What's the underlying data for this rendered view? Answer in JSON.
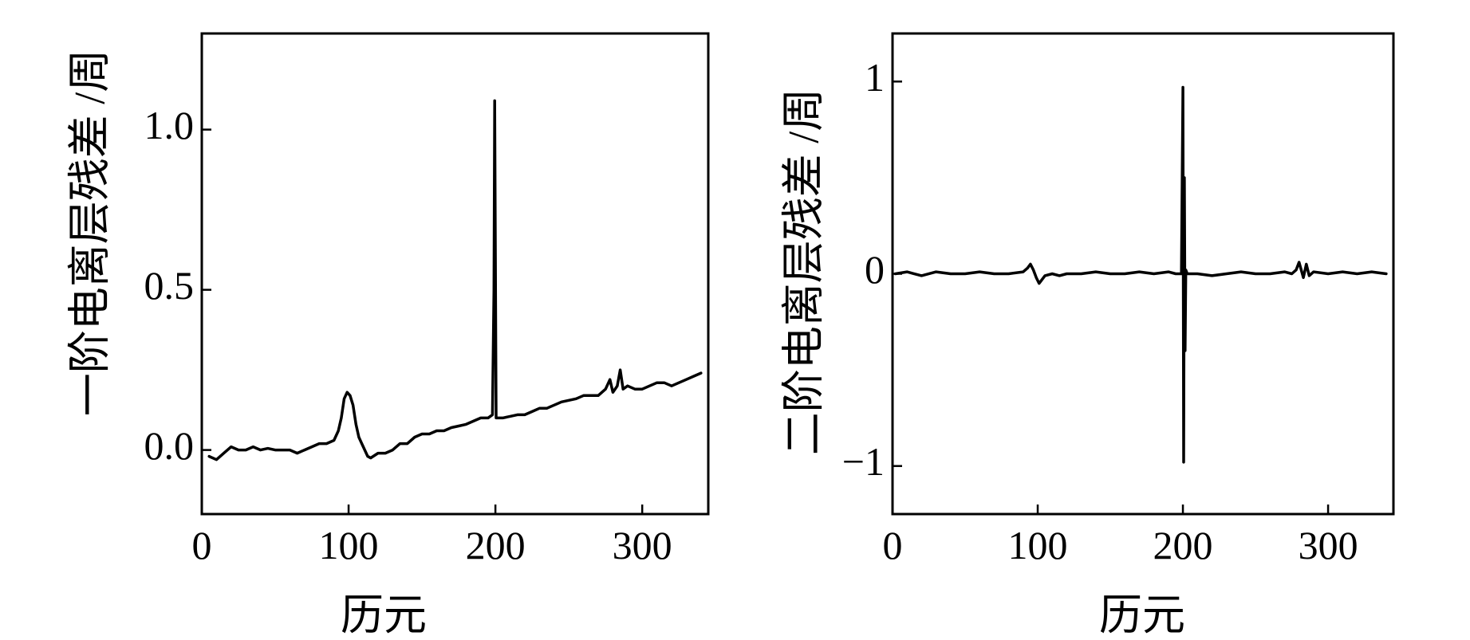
{
  "chart_data": [
    {
      "type": "line",
      "xlabel": "历元",
      "ylabel": "一阶电离层残差 /周",
      "xlim": [
        0,
        345
      ],
      "ylim": [
        -0.2,
        1.3
      ],
      "xticks": [
        0,
        100,
        200,
        300
      ],
      "xtick_labels": [
        "0",
        "100",
        "200",
        "300"
      ],
      "yticks": [
        0.0,
        0.5,
        1.0
      ],
      "ytick_labels": [
        "0.0",
        "0.5",
        "1.0"
      ],
      "grid": false,
      "legend": "none",
      "color": "#000000",
      "series": [
        {
          "x": [
            5,
            10,
            15,
            20,
            25,
            30,
            35,
            40,
            45,
            50,
            55,
            60,
            65,
            70,
            75,
            80,
            85,
            90,
            93,
            95,
            97,
            99,
            101,
            103,
            105,
            107,
            109,
            111,
            113,
            115,
            120,
            125,
            130,
            135,
            140,
            145,
            150,
            155,
            160,
            165,
            170,
            175,
            180,
            185,
            190,
            195,
            198,
            199,
            199.5,
            200,
            200.5,
            201,
            202,
            205,
            210,
            215,
            220,
            225,
            230,
            235,
            240,
            245,
            250,
            255,
            260,
            265,
            270,
            275,
            278,
            280,
            283,
            285,
            287,
            290,
            295,
            300,
            305,
            310,
            315,
            320,
            325,
            330,
            335,
            340
          ],
          "values": [
            -0.02,
            -0.03,
            -0.01,
            0.01,
            0.0,
            0.0,
            0.01,
            0.0,
            0.005,
            0.0,
            0.0,
            0.0,
            -0.01,
            0.0,
            0.01,
            0.02,
            0.02,
            0.03,
            0.06,
            0.1,
            0.16,
            0.18,
            0.17,
            0.14,
            0.08,
            0.04,
            0.02,
            0.0,
            -0.02,
            -0.025,
            -0.01,
            -0.01,
            0.0,
            0.02,
            0.02,
            0.04,
            0.05,
            0.05,
            0.06,
            0.06,
            0.07,
            0.075,
            0.08,
            0.09,
            0.1,
            0.1,
            0.11,
            0.5,
            1.09,
            0.6,
            0.1,
            0.1,
            0.1,
            0.1,
            0.105,
            0.11,
            0.11,
            0.12,
            0.13,
            0.13,
            0.14,
            0.15,
            0.155,
            0.16,
            0.17,
            0.17,
            0.17,
            0.19,
            0.22,
            0.18,
            0.2,
            0.25,
            0.19,
            0.2,
            0.19,
            0.19,
            0.2,
            0.21,
            0.21,
            0.2,
            0.21,
            0.22,
            0.23,
            0.24
          ]
        }
      ]
    },
    {
      "type": "line",
      "xlabel": "历元",
      "ylabel": "二阶电离层残差 /周",
      "xlim": [
        0,
        345
      ],
      "ylim": [
        -1.25,
        1.25
      ],
      "xticks": [
        0,
        100,
        200,
        300
      ],
      "xtick_labels": [
        "0",
        "100",
        "200",
        "300"
      ],
      "yticks": [
        -1,
        0,
        1
      ],
      "ytick_labels": [
        "−1",
        "0",
        "1"
      ],
      "grid": false,
      "legend": "none",
      "color": "#000000",
      "series": [
        {
          "x": [
            2,
            10,
            20,
            30,
            40,
            50,
            60,
            70,
            80,
            90,
            93,
            95,
            97,
            99,
            101,
            103,
            105,
            110,
            115,
            120,
            130,
            140,
            150,
            160,
            170,
            180,
            190,
            195,
            199,
            200,
            200.5,
            201,
            201.5,
            202,
            203,
            205,
            210,
            220,
            230,
            240,
            250,
            260,
            270,
            275,
            278,
            280,
            283,
            285,
            287,
            290,
            300,
            310,
            320,
            330,
            340
          ],
          "values": [
            0.0,
            0.01,
            -0.01,
            0.01,
            0.0,
            0.0,
            0.01,
            0.0,
            0.0,
            0.01,
            0.03,
            0.05,
            0.02,
            -0.02,
            -0.05,
            -0.03,
            -0.01,
            0.0,
            -0.01,
            0.0,
            0.0,
            0.01,
            0.0,
            0.0,
            0.01,
            0.0,
            0.01,
            0.0,
            0.0,
            0.97,
            -0.98,
            0.5,
            -0.4,
            0.02,
            0.0,
            0.0,
            0.0,
            -0.01,
            0.0,
            0.01,
            0.0,
            0.0,
            0.01,
            0.0,
            0.02,
            0.06,
            -0.02,
            0.05,
            -0.01,
            0.01,
            0.0,
            0.01,
            0.0,
            0.01,
            0.0
          ]
        }
      ]
    }
  ]
}
